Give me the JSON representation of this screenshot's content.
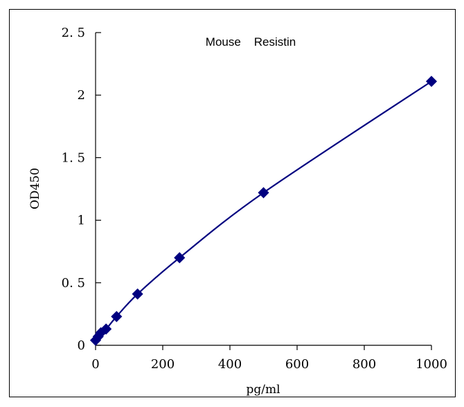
{
  "chart_data": {
    "type": "line",
    "title": "Mouse    Resistin",
    "xlabel": "pg/ml",
    "ylabel": "OD450",
    "xlim": [
      0,
      1000
    ],
    "ylim": [
      0,
      2.5
    ],
    "x_ticks": [
      "0",
      "200",
      "400",
      "600",
      "800",
      "1000"
    ],
    "y_ticks": [
      "0",
      "0. 5",
      "1",
      "1. 5",
      "2",
      "2. 5"
    ],
    "grid": false,
    "series": [
      {
        "color": "#000080",
        "marker": "diamond",
        "smooth": true,
        "x": [
          0,
          7.8,
          15.6,
          31.25,
          62.5,
          125,
          250,
          500,
          1000
        ],
        "y": [
          0.04,
          0.07,
          0.1,
          0.13,
          0.23,
          0.41,
          0.7,
          1.22,
          2.11
        ]
      }
    ]
  }
}
